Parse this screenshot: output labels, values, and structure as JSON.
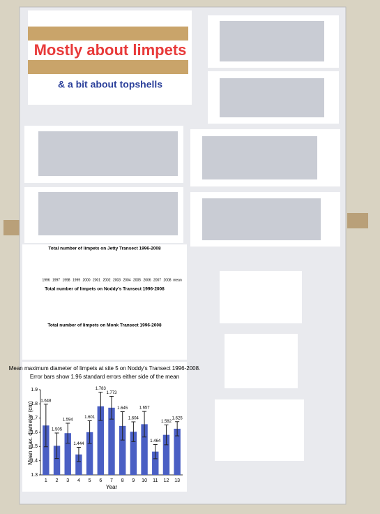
{
  "poster": {
    "title": "Mostly about limpets",
    "subtitle": "& a bit about topshells",
    "bar_chart_titles": [
      "Total number of limpets on Jetty Transect 1996-2008",
      "Total number of limpets on Noddy's Transect 1996-2008",
      "Total number of limpets on Monk Transect 1996-2008"
    ],
    "jetty_categories": [
      "1996",
      "1997",
      "1998",
      "1999",
      "2000",
      "2001",
      "2002",
      "2003",
      "2004",
      "2005",
      "2006",
      "2007",
      "2008",
      "mean"
    ]
  },
  "chart_data": {
    "type": "bar",
    "title": "Mean maximum diameter of limpets at site 5 on Noddy's Transect 1996-2008.",
    "subtitle": "Error bars show 1.96 standard errors either side of the mean",
    "x_label": "Year",
    "y_label": "Mean max. diameter (cm)",
    "categories": [
      "1",
      "2",
      "3",
      "4",
      "5",
      "6",
      "7",
      "8",
      "9",
      "10",
      "11",
      "12",
      "13"
    ],
    "values": [
      1.648,
      1.505,
      1.594,
      1.444,
      1.601,
      1.783,
      1.773,
      1.645,
      1.604,
      1.657,
      1.464,
      1.582,
      1.625
    ],
    "errors": [
      0.15,
      0.09,
      0.07,
      0.05,
      0.08,
      0.1,
      0.08,
      0.1,
      0.07,
      0.09,
      0.05,
      0.07,
      0.05
    ],
    "color": "#4a5fc4",
    "ylim": [
      1.3,
      1.9
    ],
    "yticks": [
      1.3,
      1.4,
      1.5,
      1.6,
      1.7,
      1.8,
      1.9
    ]
  }
}
